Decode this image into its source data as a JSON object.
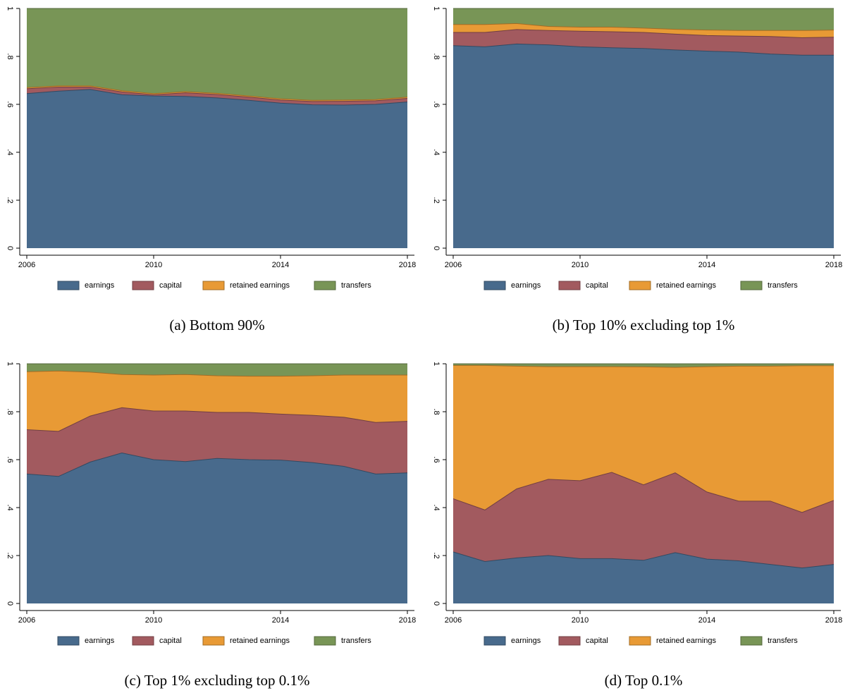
{
  "chart_data": [
    {
      "type": "area",
      "caption": "(a) Bottom 90%",
      "x": [
        2006,
        2007,
        2008,
        2009,
        2010,
        2011,
        2012,
        2013,
        2014,
        2015,
        2016,
        2017,
        2018
      ],
      "xlim": [
        2006,
        2018
      ],
      "xticks": [
        2006,
        2010,
        2014,
        2018
      ],
      "ylim": [
        0,
        1
      ],
      "yticks": [
        0,
        {
          "value": 0.2,
          "label": ".2"
        },
        {
          "value": 0.4,
          "label": ".4"
        },
        {
          "value": 0.6,
          "label": ".6"
        },
        {
          "value": 0.8,
          "label": ".8"
        },
        1
      ],
      "series": [
        {
          "name": "earnings",
          "color": "#486a8c",
          "values": [
            0.645,
            0.655,
            0.662,
            0.64,
            0.635,
            0.633,
            0.627,
            0.617,
            0.605,
            0.598,
            0.597,
            0.6,
            0.61
          ]
        },
        {
          "name": "capital",
          "color": "#a25a5f",
          "values": [
            0.02,
            0.017,
            0.01,
            0.012,
            0.005,
            0.015,
            0.014,
            0.013,
            0.013,
            0.014,
            0.016,
            0.015,
            0.015
          ]
        },
        {
          "name": "retained earnings",
          "color": "#e89a35",
          "values": [
            0.005,
            0.005,
            0.005,
            0.005,
            0.005,
            0.005,
            0.005,
            0.005,
            0.005,
            0.005,
            0.005,
            0.005,
            0.005
          ]
        },
        {
          "name": "transfers",
          "color": "#789556",
          "values": [
            0.33,
            0.323,
            0.323,
            0.343,
            0.355,
            0.347,
            0.354,
            0.365,
            0.377,
            0.383,
            0.382,
            0.38,
            0.37
          ]
        }
      ]
    },
    {
      "type": "area",
      "caption": "(b) Top 10% excluding top 1%",
      "x": [
        2006,
        2007,
        2008,
        2009,
        2010,
        2011,
        2012,
        2013,
        2014,
        2015,
        2016,
        2017,
        2018
      ],
      "xlim": [
        2006,
        2018
      ],
      "xticks": [
        2006,
        2010,
        2014,
        2018
      ],
      "ylim": [
        0,
        1
      ],
      "yticks": [
        0,
        {
          "value": 0.2,
          "label": ".2"
        },
        {
          "value": 0.4,
          "label": ".4"
        },
        {
          "value": 0.6,
          "label": ".6"
        },
        {
          "value": 0.8,
          "label": ".8"
        },
        1
      ],
      "series": [
        {
          "name": "earnings",
          "color": "#486a8c",
          "values": [
            0.845,
            0.84,
            0.852,
            0.848,
            0.84,
            0.836,
            0.833,
            0.827,
            0.822,
            0.818,
            0.81,
            0.805,
            0.805
          ]
        },
        {
          "name": "capital",
          "color": "#a25a5f",
          "values": [
            0.055,
            0.06,
            0.06,
            0.06,
            0.065,
            0.067,
            0.067,
            0.066,
            0.065,
            0.067,
            0.073,
            0.073,
            0.075
          ]
        },
        {
          "name": "retained earnings",
          "color": "#e89a35",
          "values": [
            0.033,
            0.033,
            0.025,
            0.017,
            0.017,
            0.019,
            0.018,
            0.02,
            0.023,
            0.023,
            0.025,
            0.03,
            0.03
          ]
        },
        {
          "name": "transfers",
          "color": "#789556",
          "values": [
            0.067,
            0.067,
            0.063,
            0.075,
            0.078,
            0.078,
            0.082,
            0.087,
            0.09,
            0.092,
            0.092,
            0.092,
            0.09
          ]
        }
      ]
    },
    {
      "type": "area",
      "caption": "(c) Top 1% excluding top 0.1%",
      "x": [
        2006,
        2007,
        2008,
        2009,
        2010,
        2011,
        2012,
        2013,
        2014,
        2015,
        2016,
        2017,
        2018
      ],
      "xlim": [
        2006,
        2018
      ],
      "xticks": [
        2006,
        2010,
        2014,
        2018
      ],
      "ylim": [
        0,
        1
      ],
      "yticks": [
        0,
        {
          "value": 0.2,
          "label": ".2"
        },
        {
          "value": 0.4,
          "label": ".4"
        },
        {
          "value": 0.6,
          "label": ".6"
        },
        {
          "value": 0.8,
          "label": ".8"
        },
        1
      ],
      "series": [
        {
          "name": "earnings",
          "color": "#486a8c",
          "values": [
            0.54,
            0.53,
            0.59,
            0.628,
            0.6,
            0.592,
            0.605,
            0.6,
            0.598,
            0.588,
            0.572,
            0.54,
            0.545
          ]
        },
        {
          "name": "capital",
          "color": "#a25a5f",
          "values": [
            0.185,
            0.188,
            0.192,
            0.189,
            0.203,
            0.211,
            0.192,
            0.197,
            0.192,
            0.197,
            0.205,
            0.215,
            0.215
          ]
        },
        {
          "name": "retained earnings",
          "color": "#e89a35",
          "values": [
            0.242,
            0.252,
            0.183,
            0.138,
            0.15,
            0.152,
            0.153,
            0.151,
            0.158,
            0.165,
            0.176,
            0.198,
            0.193
          ]
        },
        {
          "name": "transfers",
          "color": "#789556",
          "values": [
            0.033,
            0.03,
            0.035,
            0.045,
            0.047,
            0.045,
            0.05,
            0.052,
            0.052,
            0.05,
            0.047,
            0.047,
            0.047
          ]
        }
      ]
    },
    {
      "type": "area",
      "caption": "(d) Top 0.1%",
      "x": [
        2006,
        2007,
        2008,
        2009,
        2010,
        2011,
        2012,
        2013,
        2014,
        2015,
        2016,
        2017,
        2018
      ],
      "xlim": [
        2006,
        2018
      ],
      "xticks": [
        2006,
        2010,
        2014,
        2018
      ],
      "ylim": [
        0,
        1
      ],
      "yticks": [
        0,
        {
          "value": 0.2,
          "label": ".2"
        },
        {
          "value": 0.4,
          "label": ".4"
        },
        {
          "value": 0.6,
          "label": ".6"
        },
        {
          "value": 0.8,
          "label": ".8"
        },
        1
      ],
      "series": [
        {
          "name": "earnings",
          "color": "#486a8c",
          "values": [
            0.215,
            0.175,
            0.19,
            0.2,
            0.187,
            0.187,
            0.18,
            0.212,
            0.185,
            0.178,
            0.163,
            0.148,
            0.163
          ]
        },
        {
          "name": "capital",
          "color": "#a25a5f",
          "values": [
            0.222,
            0.215,
            0.288,
            0.318,
            0.325,
            0.36,
            0.315,
            0.333,
            0.28,
            0.249,
            0.264,
            0.232,
            0.267
          ]
        },
        {
          "name": "retained earnings",
          "color": "#e89a35",
          "values": [
            0.556,
            0.603,
            0.512,
            0.47,
            0.476,
            0.441,
            0.492,
            0.44,
            0.523,
            0.563,
            0.563,
            0.612,
            0.562
          ]
        },
        {
          "name": "transfers",
          "color": "#789556",
          "values": [
            0.007,
            0.007,
            0.01,
            0.012,
            0.012,
            0.012,
            0.013,
            0.015,
            0.012,
            0.01,
            0.01,
            0.008,
            0.008
          ]
        }
      ]
    }
  ]
}
